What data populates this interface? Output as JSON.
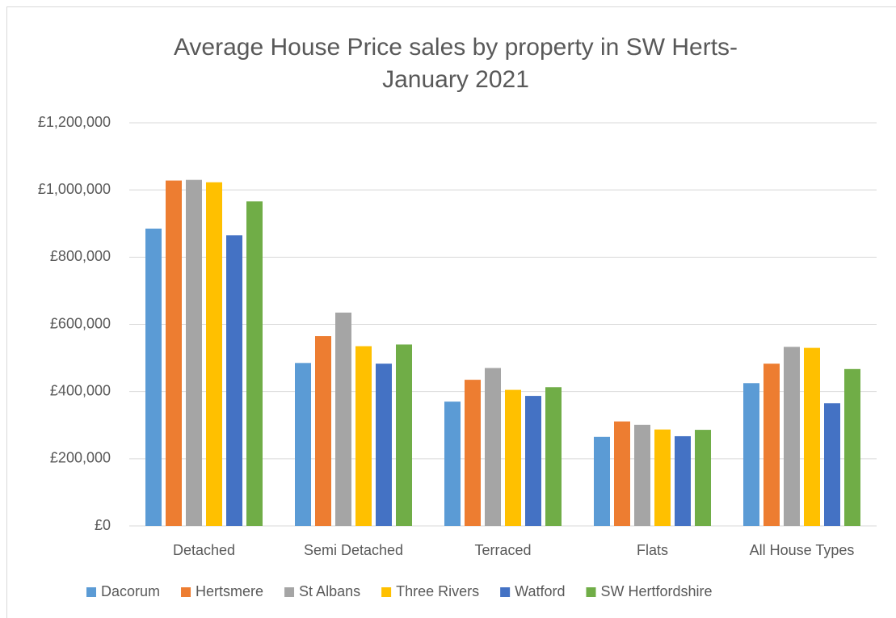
{
  "chart_data": {
    "type": "bar",
    "title": [
      "Average House Price sales by property in SW Herts-",
      "January 2021"
    ],
    "categories": [
      "Detached",
      "Semi Detached",
      "Terraced",
      "Flats",
      "All House Types"
    ],
    "series": [
      {
        "name": "Dacorum",
        "color": "#5b9bd5",
        "values": [
          885000,
          485000,
          370000,
          265000,
          425000
        ]
      },
      {
        "name": "Hertsmere",
        "color": "#ed7d31",
        "values": [
          1028000,
          565000,
          435000,
          311000,
          483000
        ]
      },
      {
        "name": "St Albans",
        "color": "#a5a5a5",
        "values": [
          1030000,
          635000,
          470000,
          301000,
          533000
        ]
      },
      {
        "name": "Three Rivers",
        "color": "#ffc000",
        "values": [
          1023000,
          535000,
          405000,
          287000,
          530000
        ]
      },
      {
        "name": "Watford",
        "color": "#4472c4",
        "values": [
          865000,
          483000,
          387000,
          267000,
          365000
        ]
      },
      {
        "name": "SW Hertfordshire",
        "color": "#70ad47",
        "values": [
          966000,
          540000,
          413000,
          286000,
          467000
        ]
      }
    ],
    "ylim": [
      0,
      1200000
    ],
    "yticks": [
      {
        "value": 0,
        "label": "£0"
      },
      {
        "value": 200000,
        "label": "£200,000"
      },
      {
        "value": 400000,
        "label": "£400,000"
      },
      {
        "value": 600000,
        "label": "£600,000"
      },
      {
        "value": 800000,
        "label": "£800,000"
      },
      {
        "value": 1000000,
        "label": "£1,000,000"
      },
      {
        "value": 1200000,
        "label": "£1,200,000"
      }
    ],
    "grid": true,
    "legend": "bottom"
  }
}
